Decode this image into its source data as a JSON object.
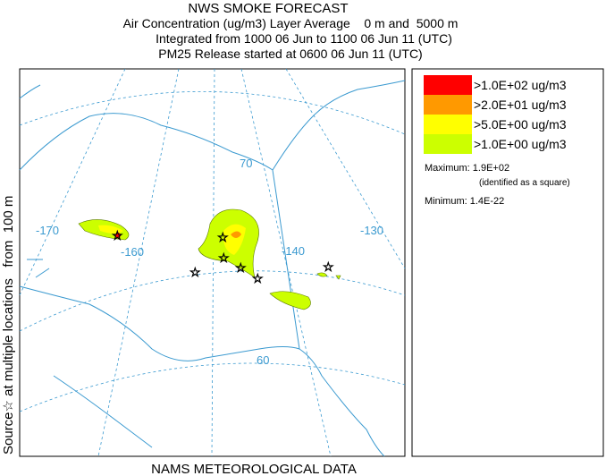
{
  "header": {
    "lines": [
      "NWS SMOKE FORECAST",
      "Air Concentration (ug/m3) Layer Average    0 m and  5000 m",
      "Integrated from 1000 06 Jun to 1100 06 Jun 11 (UTC)",
      "PM25 Release started at 0600 06 Jun 11 (UTC)"
    ]
  },
  "side_label": "Source☆ at multiple locations   from  100 m",
  "footer": "NAMS METEOROLOGICAL DATA",
  "map": {
    "labels": [
      "-170",
      "-160",
      "-140",
      "-130",
      "70",
      "60"
    ]
  },
  "legend": {
    "items": [
      {
        "label": ">1.0E+02 ug/m3",
        "color": "#ff0000"
      },
      {
        "label": ">2.0E+01 ug/m3",
        "color": "#ff9900"
      },
      {
        "label": ">5.0E+00 ug/m3",
        "color": "#ffff00"
      },
      {
        "label": ">1.0E+00 ug/m3",
        "color": "#ccff00"
      }
    ],
    "maximum": "Maximum: 1.9E+02",
    "maximum_note": "(identified as a square)",
    "minimum": "Minimum: 1.4E-22"
  }
}
